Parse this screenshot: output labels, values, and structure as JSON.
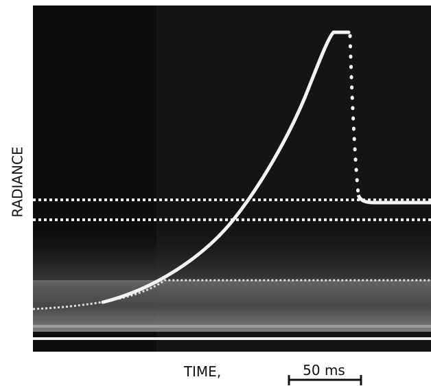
{
  "y_label": "RADIANCE",
  "x_label": "TIME,",
  "scale_bar": "50 ms"
}
